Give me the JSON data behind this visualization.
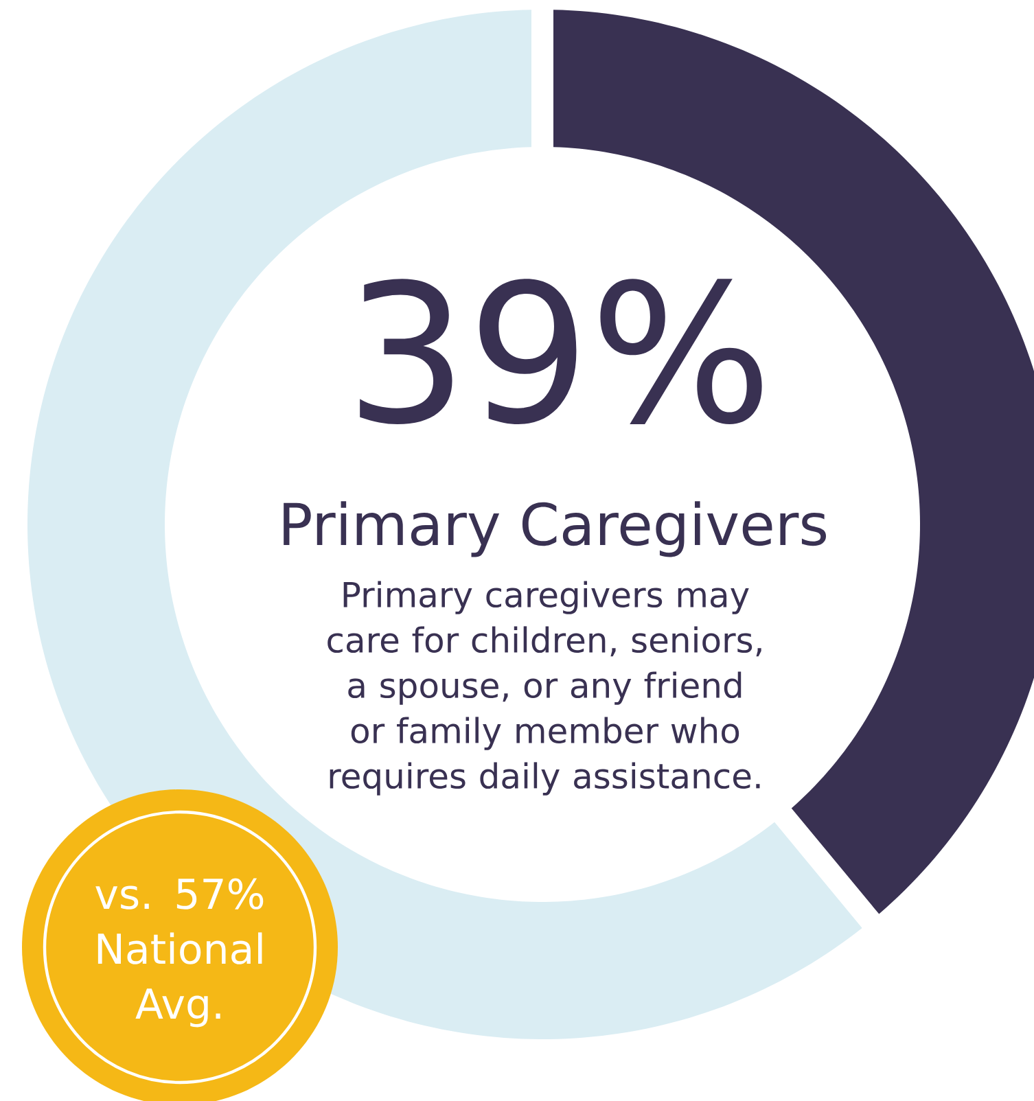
{
  "chart_data": {
    "type": "donut",
    "title": "Primary Caregivers",
    "subtitle": "Primary caregivers may care for children, seniors, a spouse, or any friend or family member who requires daily assistance.",
    "categories": [
      null,
      null
    ],
    "values": [
      39,
      61
    ],
    "colors": [
      "#393152",
      "#daedf3"
    ],
    "value_labels": [
      "39%",
      null
    ],
    "annotations": [
      "vs. 57% National Avg."
    ]
  }
}
